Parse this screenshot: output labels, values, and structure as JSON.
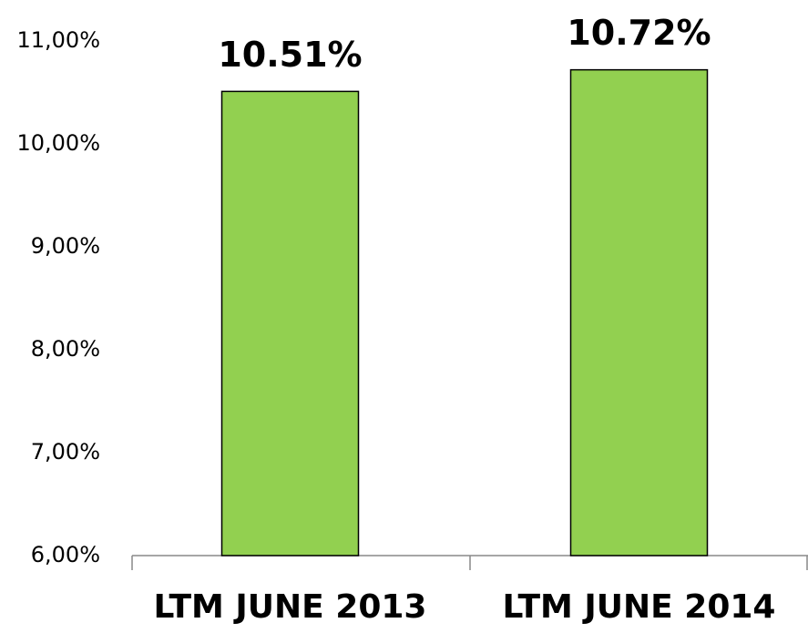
{
  "chart_data": {
    "type": "bar",
    "categories": [
      "LTM JUNE 2013",
      "LTM JUNE 2014"
    ],
    "values": [
      10.51,
      10.72
    ],
    "value_labels": [
      "10.51%",
      "10.72%"
    ],
    "color": "#92d050",
    "ylim": [
      6,
      11
    ],
    "yticks": [
      {
        "value": 6,
        "label": "6,00%"
      },
      {
        "value": 7,
        "label": "7,00%"
      },
      {
        "value": 8,
        "label": "8,00%"
      },
      {
        "value": 9,
        "label": "9,00%"
      },
      {
        "value": 10,
        "label": "10,00%"
      },
      {
        "value": 11,
        "label": "11,00%"
      }
    ],
    "grid": false
  }
}
